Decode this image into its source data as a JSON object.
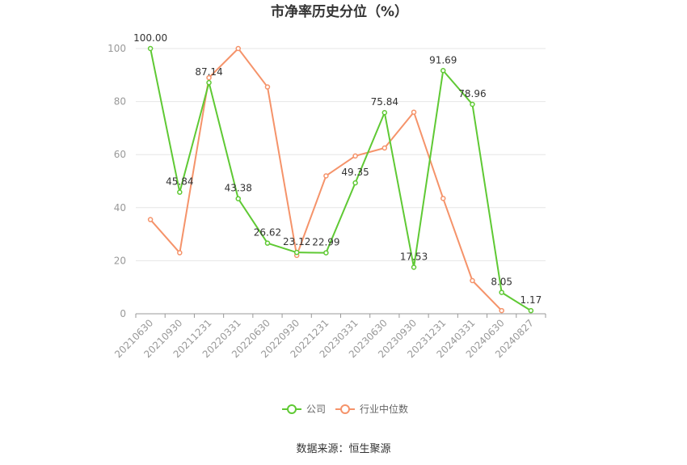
{
  "chart_data": {
    "type": "line",
    "title": "市净率历史分位（%）",
    "categories": [
      "20210630",
      "20210930",
      "20211231",
      "20220331",
      "20220630",
      "20220930",
      "20221231",
      "20230331",
      "20230630",
      "20230930",
      "20231231",
      "20240331",
      "20240630",
      "20240827"
    ],
    "ylim": [
      0,
      100
    ],
    "yticks": [
      0,
      20,
      40,
      60,
      80,
      100
    ],
    "grid": true,
    "legend_position": "bottom",
    "series": [
      {
        "name": "公司",
        "color": "#5fc934",
        "values": [
          100.0,
          45.84,
          87.14,
          43.38,
          26.62,
          23.12,
          22.99,
          49.35,
          75.84,
          17.53,
          91.69,
          78.96,
          8.05,
          1.17
        ],
        "labels": [
          "100.00",
          "45.84",
          "87.14",
          "43.38",
          "26.62",
          "23.12",
          "22.99",
          "49.35",
          "75.84",
          "17.53",
          "91.69",
          "78.96",
          "8.05",
          "1.17"
        ]
      },
      {
        "name": "行业中位数",
        "color": "#f5936a",
        "values": [
          35.5,
          23.0,
          89.0,
          100.0,
          85.5,
          22.0,
          52.0,
          59.5,
          62.5,
          76.0,
          43.5,
          12.5,
          1.2,
          null
        ]
      }
    ],
    "source": "数据来源：恒生聚源"
  }
}
